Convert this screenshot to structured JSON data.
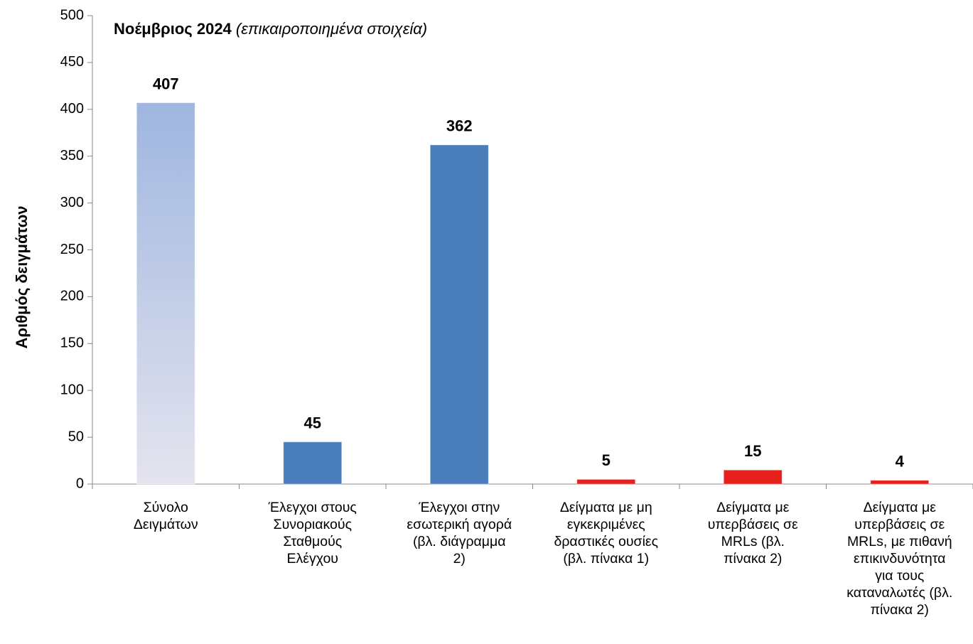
{
  "chart_data": {
    "type": "bar",
    "title": "Νοέμβριος 2024",
    "subtitle": "(επικαιροποιημένα στοιχεία)",
    "y_label": "Αριθμός δειγμάτων",
    "categories": [
      "Σύνολο\nΔειγμάτων",
      "Έλεγχοι στους\nΣυνοριακούς\nΣταθμούς\nΕλέγχου",
      "Έλεγχοι στην\nεσωτερική αγορά\n(βλ. διάγραμμα\n2)",
      "Δείγματα με μη\nεγκεκριμένες\nδραστικές ουσίες\n(βλ. πίνακα 1)",
      "Δείγματα με\nυπερβάσεις σε\nMRLs (βλ.\nπίνακα 2)",
      "Δείγματα με\nυπερβάσεις σε\nMRLs, με πιθανή\nεπικινδυνότητα\nγια τους\nκαταναλωτές (βλ.\nπίνακα 2)"
    ],
    "values": [
      407,
      45,
      362,
      5,
      15,
      4
    ],
    "colors": [
      "#b4c6e6",
      "#4a7ebb",
      "#4a7ebb",
      "#e8201c",
      "#e8201c",
      "#e8201c"
    ],
    "ylim": [
      0,
      500
    ],
    "yticks": [
      0,
      50,
      100,
      150,
      200,
      250,
      300,
      350,
      400,
      450,
      500
    ],
    "grid": false
  }
}
